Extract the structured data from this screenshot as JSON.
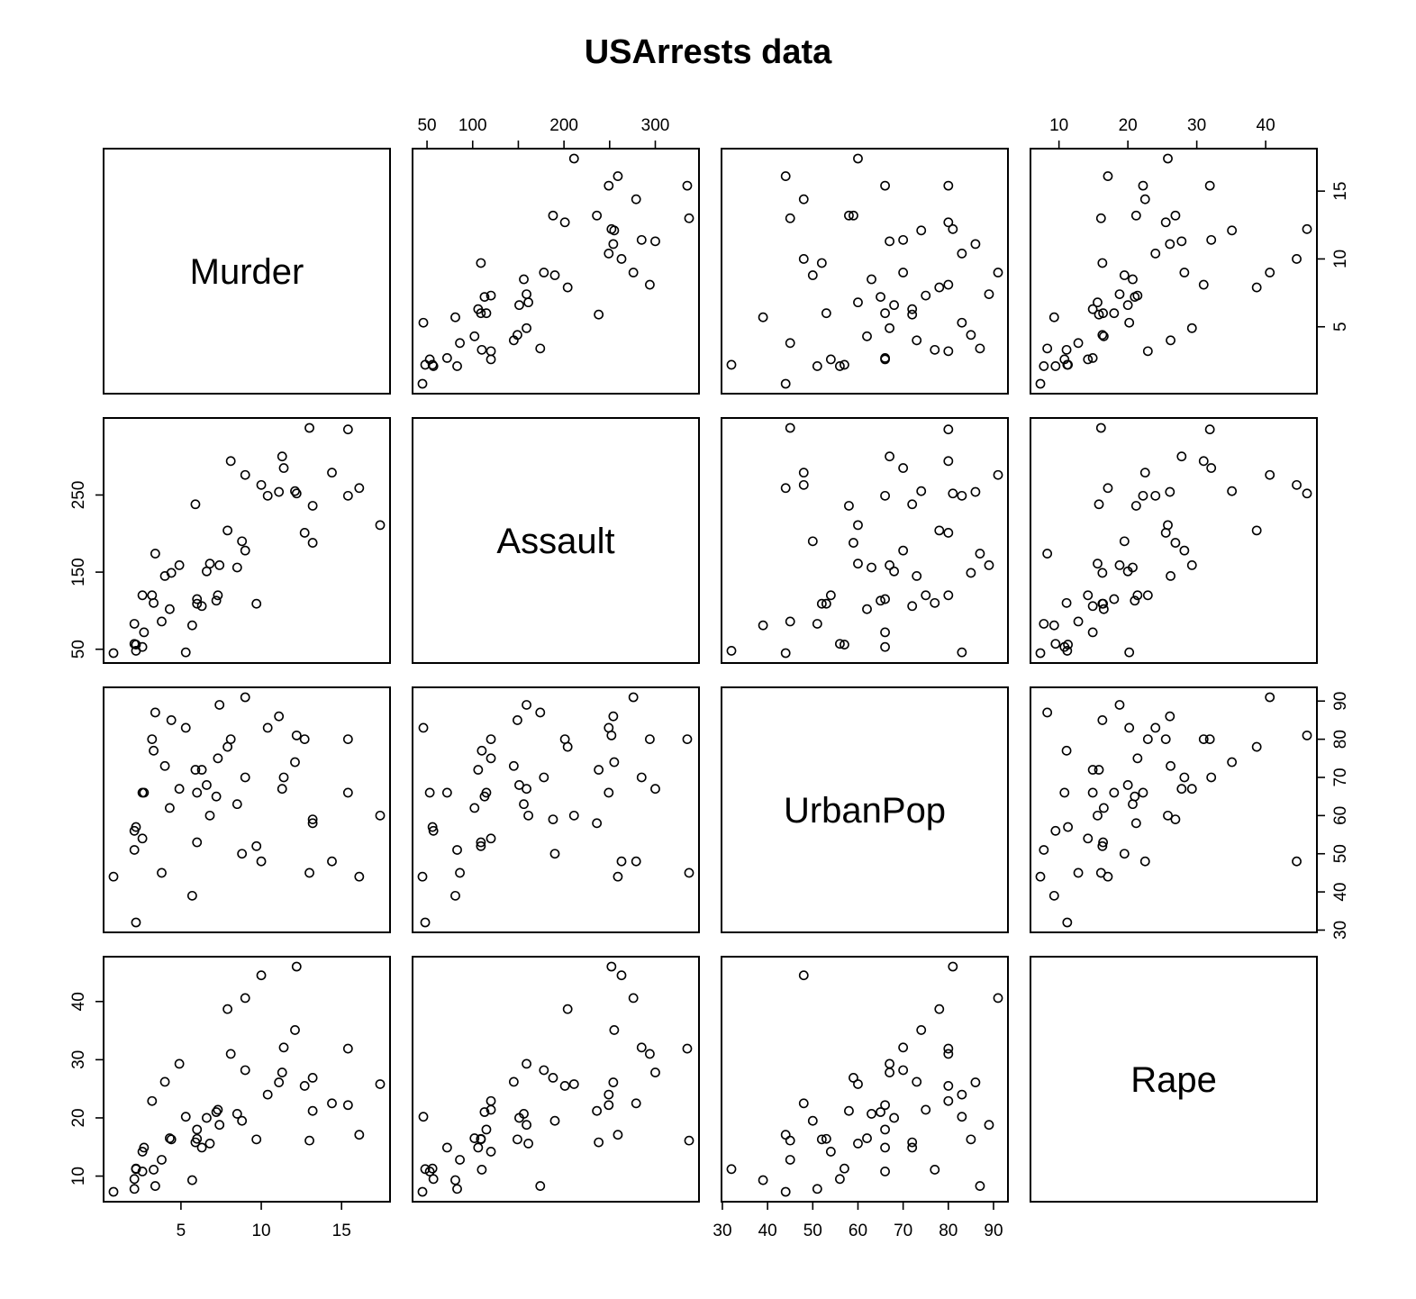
{
  "chart_data": {
    "type": "scatter",
    "subtype": "scatterplot-matrix",
    "title": "USArrests data",
    "variables": [
      "Murder",
      "Assault",
      "UrbanPop",
      "Rape"
    ],
    "ranges": {
      "Murder": [
        0.8,
        17.4
      ],
      "Assault": [
        45,
        337
      ],
      "UrbanPop": [
        32,
        91
      ],
      "Rape": [
        7.3,
        46
      ]
    },
    "ticks": {
      "Murder": [
        5,
        10,
        15
      ],
      "Assault": [
        50,
        100,
        150,
        200,
        250,
        300
      ],
      "UrbanPop": [
        30,
        40,
        50,
        60,
        70,
        80,
        90
      ],
      "Rape": [
        10,
        20,
        30,
        40
      ]
    },
    "tick_labels": {
      "Murder": [
        "5",
        "10",
        "15"
      ],
      "Assault_top": [
        "50",
        "100",
        "",
        "200",
        "",
        "300"
      ],
      "Assault_left": [
        "50",
        "150",
        "250"
      ],
      "UrbanPop": [
        "30",
        "40",
        "50",
        "60",
        "70",
        "80",
        "90"
      ],
      "Rape": [
        "10",
        "20",
        "30",
        "40"
      ]
    },
    "records": [
      [
        13.2,
        236,
        58,
        21.2
      ],
      [
        10,
        263,
        48,
        44.5
      ],
      [
        8.1,
        294,
        80,
        31
      ],
      [
        8.8,
        190,
        50,
        19.5
      ],
      [
        9,
        276,
        91,
        40.6
      ],
      [
        7.9,
        204,
        78,
        38.7
      ],
      [
        3.3,
        110,
        77,
        11.1
      ],
      [
        5.9,
        238,
        72,
        15.8
      ],
      [
        15.4,
        335,
        80,
        31.9
      ],
      [
        17.4,
        211,
        60,
        25.8
      ],
      [
        5.3,
        46,
        83,
        20.2
      ],
      [
        2.6,
        120,
        54,
        14.2
      ],
      [
        10.4,
        249,
        83,
        24
      ],
      [
        7.2,
        113,
        65,
        21
      ],
      [
        2.2,
        56,
        57,
        11.3
      ],
      [
        6,
        115,
        66,
        18
      ],
      [
        9.7,
        109,
        52,
        16.3
      ],
      [
        15.4,
        249,
        66,
        22.2
      ],
      [
        2.1,
        83,
        51,
        7.8
      ],
      [
        11.3,
        300,
        67,
        27.8
      ],
      [
        4.4,
        149,
        85,
        16.3
      ],
      [
        12.1,
        255,
        74,
        35.1
      ],
      [
        2.7,
        72,
        66,
        14.9
      ],
      [
        16.1,
        259,
        44,
        17.1
      ],
      [
        9,
        178,
        70,
        28.2
      ],
      [
        6,
        109,
        53,
        16.4
      ],
      [
        4.3,
        102,
        62,
        16.5
      ],
      [
        12.2,
        252,
        81,
        46
      ],
      [
        2.1,
        57,
        56,
        9.5
      ],
      [
        7.4,
        159,
        89,
        18.8
      ],
      [
        11.4,
        285,
        70,
        32.1
      ],
      [
        11.1,
        254,
        86,
        26.1
      ],
      [
        13,
        337,
        45,
        16.1
      ],
      [
        0.8,
        45,
        44,
        7.3
      ],
      [
        7.3,
        120,
        75,
        21.4
      ],
      [
        6.6,
        151,
        68,
        20
      ],
      [
        4.9,
        159,
        67,
        29.3
      ],
      [
        6.3,
        106,
        72,
        14.9
      ],
      [
        3.4,
        174,
        87,
        8.3
      ],
      [
        14.4,
        279,
        48,
        22.5
      ],
      [
        3.8,
        86,
        45,
        12.8
      ],
      [
        13.2,
        188,
        59,
        26.9
      ],
      [
        12.7,
        201,
        80,
        25.5
      ],
      [
        3.2,
        120,
        80,
        22.9
      ],
      [
        2.2,
        48,
        32,
        11.2
      ],
      [
        8.5,
        156,
        63,
        20.7
      ],
      [
        4,
        145,
        73,
        26.2
      ],
      [
        5.7,
        81,
        39,
        9.3
      ],
      [
        2.6,
        53,
        66,
        10.8
      ],
      [
        6.8,
        161,
        60,
        15.6
      ]
    ]
  }
}
